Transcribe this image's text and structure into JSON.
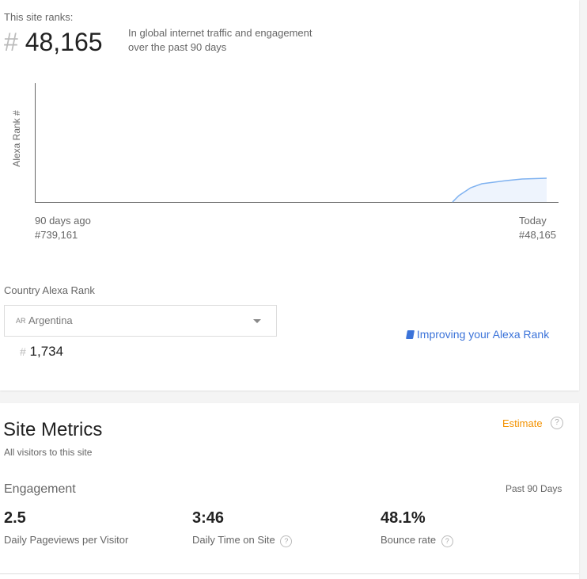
{
  "rank": {
    "label": "This site ranks:",
    "hash": "#",
    "value": "48,165",
    "description_line1": "In global internet traffic and engagement",
    "description_line2": "over the past 90 days"
  },
  "chart_data": {
    "type": "area",
    "ylabel": "Alexa Rank #",
    "start_label": "90 days ago",
    "start_rank": "#739,161",
    "end_label": "Today",
    "end_rank": "#48,165",
    "color": "#7fb2f0"
  },
  "country": {
    "label": "Country Alexa Rank",
    "code": "AR",
    "name": "Argentina",
    "hash": "#",
    "value": "1,734",
    "improve_link": "Improving your Alexa Rank",
    "link_color": "#3b73d9"
  },
  "metrics": {
    "title": "Site Metrics",
    "subtitle": "All visitors to this site",
    "estimate": "Estimate",
    "estimate_color": "#f39200",
    "section": "Engagement",
    "period": "Past 90 Days",
    "items": [
      {
        "value": "2.5",
        "label": "Daily Pageviews per Visitor"
      },
      {
        "value": "3:46",
        "label": "Daily Time on Site"
      },
      {
        "value": "48.1%",
        "label": "Bounce rate"
      }
    ]
  }
}
